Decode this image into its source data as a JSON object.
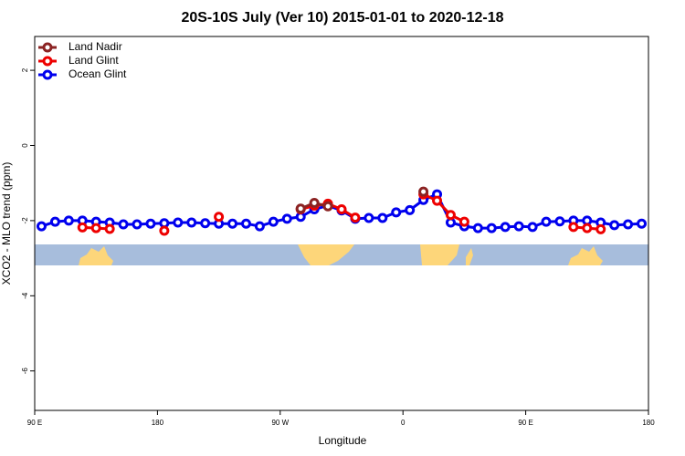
{
  "chart_data": {
    "type": "line",
    "title": "20S-10S July (Ver 10)   2015-01-01 to 2020-12-18",
    "xlabel": "Longitude",
    "ylabel": "XCO2 - MLO trend (ppm)",
    "x": [
      95,
      105,
      115,
      125,
      135,
      145,
      155,
      165,
      175,
      185,
      195,
      205,
      215,
      225,
      235,
      245,
      255,
      265,
      275,
      285,
      295,
      305,
      315,
      325,
      335,
      345,
      355,
      365,
      375,
      385,
      395,
      405,
      415,
      425,
      435,
      445,
      455,
      465,
      475,
      485,
      495,
      505,
      515,
      525,
      535
    ],
    "xlim": [
      90,
      540
    ],
    "xticks": [
      {
        "value": 90,
        "label": "90 E"
      },
      {
        "value": 180,
        "label": "180"
      },
      {
        "value": 270,
        "label": "90 W"
      },
      {
        "value": 360,
        "label": "0"
      },
      {
        "value": 450,
        "label": "90 E"
      },
      {
        "value": 540,
        "label": "180"
      }
    ],
    "ylim": [
      -7.05,
      2.9
    ],
    "yticks": [
      -6,
      -4,
      -2,
      0,
      2
    ],
    "legend": "top-left",
    "series": [
      {
        "name": "Ocean Glint",
        "color": "#0000ee",
        "values": [
          -2.15,
          -2.03,
          -2.0,
          -2.0,
          -2.03,
          -2.05,
          -2.1,
          -2.1,
          -2.08,
          -2.07,
          -2.05,
          -2.05,
          -2.07,
          -2.08,
          -2.08,
          -2.08,
          -2.15,
          -2.03,
          -1.95,
          -1.9,
          -1.7,
          -1.6,
          -1.73,
          -1.95,
          -1.93,
          -1.93,
          -1.78,
          -1.72,
          -1.45,
          -1.3,
          -2.05,
          -2.15,
          -2.2,
          -2.2,
          -2.17,
          -2.15,
          -2.17,
          -2.03,
          -2.02,
          -2.0,
          -2.0,
          -2.05,
          -2.12,
          -2.1,
          -2.08
        ]
      },
      {
        "name": "Land Glint",
        "color": "#ee0000",
        "values": [
          null,
          null,
          null,
          -2.18,
          -2.2,
          -2.22,
          null,
          null,
          null,
          -2.27,
          null,
          null,
          null,
          -1.9,
          null,
          null,
          null,
          null,
          null,
          -1.7,
          -1.6,
          -1.55,
          -1.7,
          -1.92,
          null,
          null,
          null,
          null,
          -1.3,
          -1.47,
          -1.85,
          -2.03,
          null,
          null,
          null,
          null,
          null,
          null,
          null,
          -2.17,
          -2.2,
          -2.23,
          null,
          null,
          null
        ]
      },
      {
        "name": "Land Nadir",
        "color": "#8b2323",
        "values": [
          null,
          null,
          null,
          null,
          null,
          null,
          null,
          null,
          null,
          null,
          null,
          null,
          null,
          null,
          null,
          null,
          null,
          null,
          null,
          -1.68,
          -1.53,
          -1.62,
          null,
          null,
          null,
          null,
          null,
          null,
          -1.23,
          null,
          null,
          null,
          null,
          null,
          null,
          null,
          null,
          null,
          null,
          null,
          null,
          null,
          null,
          null,
          null
        ]
      }
    ]
  }
}
